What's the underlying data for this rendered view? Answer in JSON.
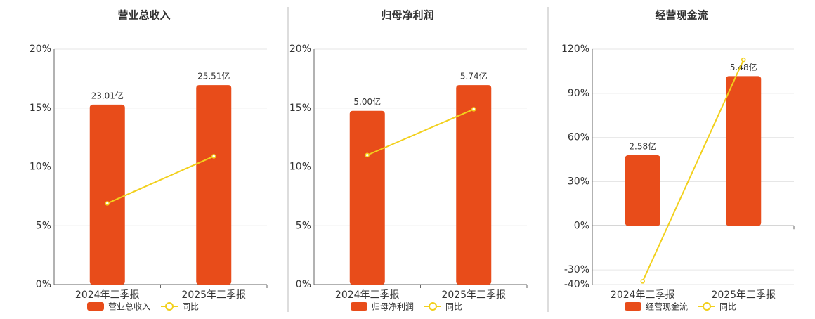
{
  "chart_data": [
    {
      "type": "bar",
      "title": "营业总收入",
      "categories": [
        "2024年三季报",
        "2025年三季报"
      ],
      "series": [
        {
          "name": "营业总收入",
          "type": "bar",
          "color": "#e84c1a",
          "values": [
            23.01,
            25.51
          ],
          "value_labels": [
            "23.01亿",
            "25.51亿"
          ]
        },
        {
          "name": "同比",
          "type": "line",
          "color": "#f2d01c",
          "values": [
            6.9,
            10.9
          ]
        }
      ],
      "ylim": [
        0,
        20
      ],
      "yticks": [
        {
          "value": 0,
          "label": "0%"
        },
        {
          "value": 5,
          "label": "5%"
        },
        {
          "value": 10,
          "label": "10%"
        },
        {
          "value": 15,
          "label": "15%"
        },
        {
          "value": 20,
          "label": "20%"
        }
      ],
      "grid": true
    },
    {
      "type": "bar",
      "title": "归母净利润",
      "categories": [
        "2024年三季报",
        "2025年三季报"
      ],
      "series": [
        {
          "name": "归母净利润",
          "type": "bar",
          "color": "#e84c1a",
          "values": [
            5.0,
            5.74
          ],
          "value_labels": [
            "5.00亿",
            "5.74亿"
          ]
        },
        {
          "name": "同比",
          "type": "line",
          "color": "#f2d01c",
          "values": [
            11.0,
            14.9
          ]
        }
      ],
      "ylim": [
        0,
        20
      ],
      "yticks": [
        {
          "value": 0,
          "label": "0%"
        },
        {
          "value": 5,
          "label": "5%"
        },
        {
          "value": 10,
          "label": "10%"
        },
        {
          "value": 15,
          "label": "15%"
        },
        {
          "value": 20,
          "label": "20%"
        }
      ],
      "grid": true
    },
    {
      "type": "bar",
      "title": "经营现金流",
      "categories": [
        "2024年三季报",
        "2025年三季报"
      ],
      "series": [
        {
          "name": "经营现金流",
          "type": "bar",
          "color": "#e84c1a",
          "values": [
            2.58,
            5.48
          ],
          "value_labels": [
            "2.58亿",
            "5.48亿"
          ]
        },
        {
          "name": "同比",
          "type": "line",
          "color": "#f2d01c",
          "values": [
            -37.8,
            112.8
          ]
        }
      ],
      "ylim": [
        -40,
        120
      ],
      "yticks": [
        {
          "value": -40,
          "label": "-40%"
        },
        {
          "value": -30,
          "label": "-30%"
        },
        {
          "value": 0,
          "label": "0%"
        },
        {
          "value": 30,
          "label": "30%"
        },
        {
          "value": 60,
          "label": "60%"
        },
        {
          "value": 90,
          "label": "90%"
        },
        {
          "value": 120,
          "label": "120%"
        }
      ],
      "grid": true
    }
  ]
}
